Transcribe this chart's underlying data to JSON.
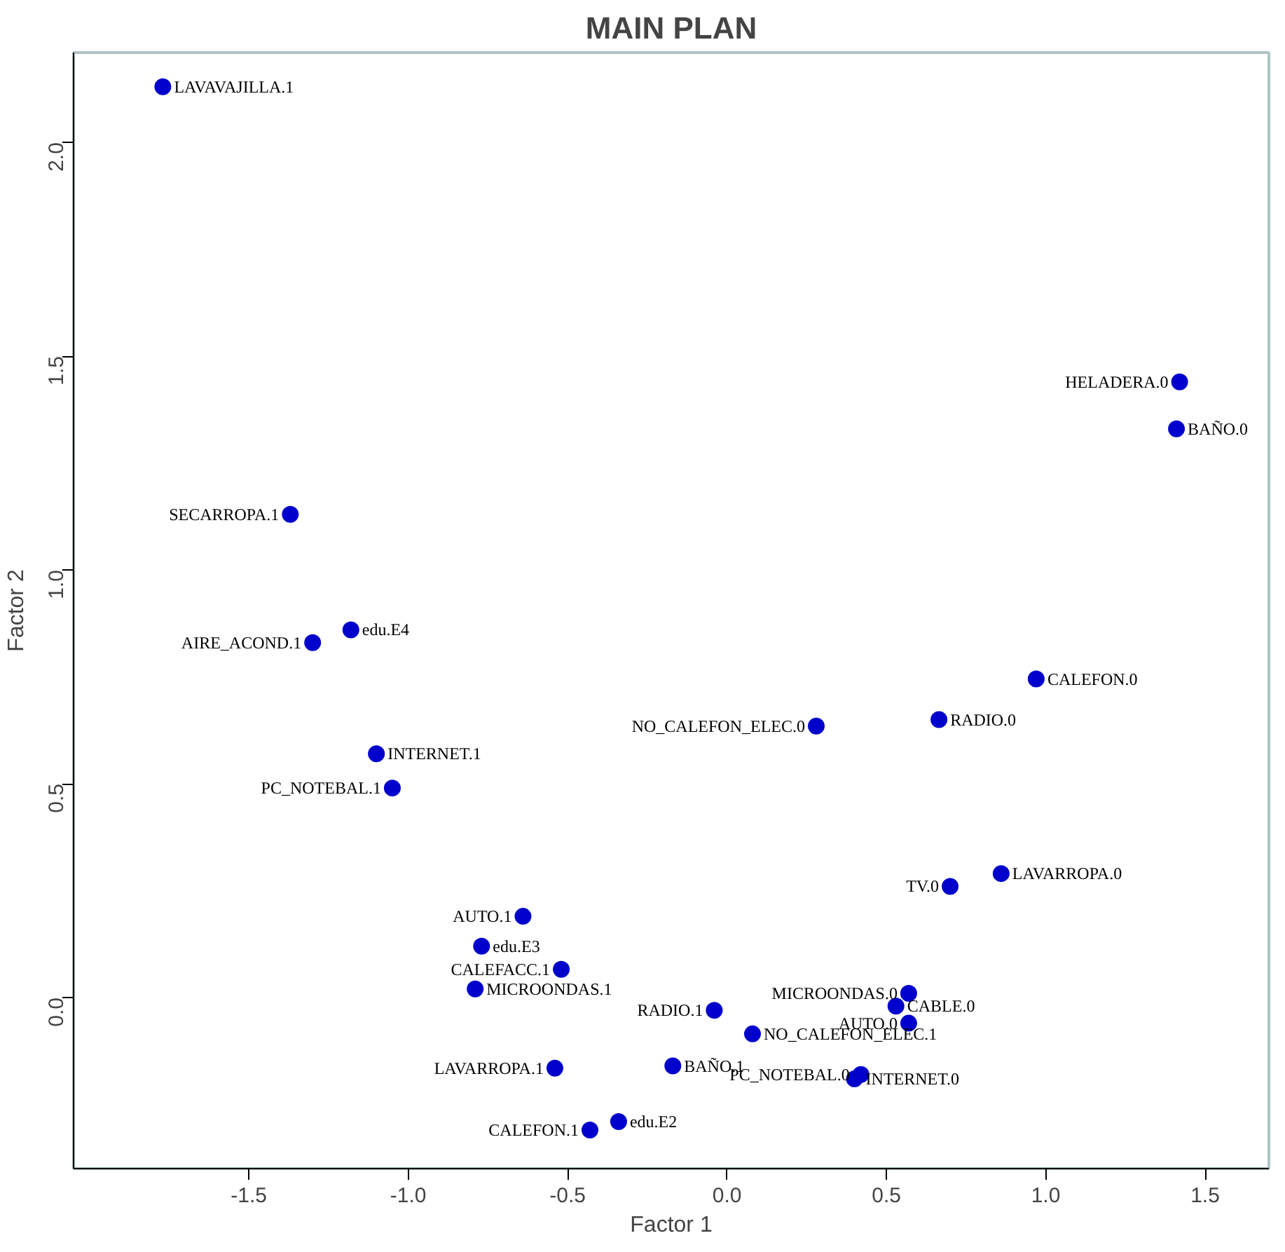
{
  "chart_data": {
    "type": "scatter",
    "title": "MAIN PLAN",
    "xlabel": "Factor 1",
    "ylabel": "Factor 2",
    "xlim": [
      -2.05,
      1.7
    ],
    "ylim": [
      -0.4,
      2.21
    ],
    "xticks": [
      {
        "value": -1.5,
        "label": "-1.5"
      },
      {
        "value": -1.0,
        "label": "-1.0"
      },
      {
        "value": -0.5,
        "label": "-0.5"
      },
      {
        "value": 0,
        "label": "0.0"
      },
      {
        "value": 0.5,
        "label": "0.5"
      },
      {
        "value": 1.0,
        "label": "1.0"
      },
      {
        "value": 1.5,
        "label": "1.5"
      }
    ],
    "yticks": [
      {
        "value": 0,
        "label": "0.0"
      },
      {
        "value": 0.5,
        "label": "0.5"
      },
      {
        "value": 1.0,
        "label": "1.0"
      },
      {
        "value": 1.5,
        "label": "1.5"
      },
      {
        "value": 2.0,
        "label": "2.0"
      }
    ],
    "grid": false,
    "marker": "circle",
    "series": [
      {
        "color": "#0000cc",
        "x": [
          -1.77,
          1.42,
          1.41,
          -1.37,
          -1.18,
          -1.3,
          -1.1,
          -1.05,
          0.97,
          0.28,
          0.665,
          0.7,
          0.86,
          -0.64,
          -0.77,
          -0.52,
          -0.79,
          -0.54,
          -0.17,
          -0.04,
          -0.34,
          -0.43,
          0.08,
          0.42,
          0.4,
          0.57,
          0.53,
          0.57
        ],
        "values": [
          2.13,
          1.44,
          1.33,
          1.13,
          0.86,
          0.83,
          0.57,
          0.49,
          0.745,
          0.635,
          0.65,
          0.26,
          0.29,
          0.19,
          0.12,
          0.066,
          0.02,
          -0.165,
          -0.16,
          -0.03,
          -0.29,
          -0.31,
          -0.085,
          -0.18,
          -0.19,
          0.01,
          -0.02,
          -0.06
        ],
        "value_labels": [
          "LAVAVAJILLA.1",
          "HELADERA.0",
          "BAÑO.0",
          "SECARROPA.1",
          "edu.E4",
          "AIRE_ACOND.1",
          "INTERNET.1",
          "PC_NOTEBAL.1",
          "CALEFON.0",
          "NO_CALEFON_ELEC.0",
          "RADIO.0",
          "TV.0",
          "LAVARROPA.0",
          "AUTO.1",
          "edu.E3",
          "CALEFACC.1",
          "MICROONDAS.1",
          "LAVARROPA.1",
          "BAÑO.1",
          "RADIO.1",
          "edu.E2",
          "CALEFON.1",
          "NO_CALEFON_ELEC.1",
          "PC_NOTEBAL.0",
          "INTERNET.0",
          "MICROONDAS.0",
          "CABLE.0",
          "AUTO.0"
        ]
      }
    ]
  }
}
